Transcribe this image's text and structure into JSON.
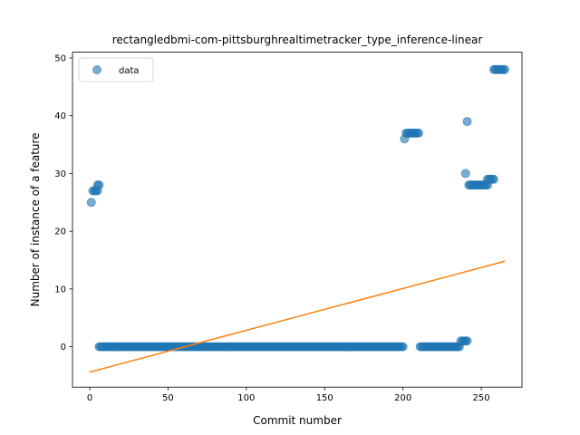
{
  "chart_data": {
    "type": "scatter",
    "title": "rectangledbmi-com-pittsburghrealtimetracker_type_inference-linear",
    "xlabel": "Commit number",
    "ylabel": "Number of instance of a feature",
    "xlim": [
      -11,
      276
    ],
    "ylim": [
      -7,
      51
    ],
    "xticks": [
      0,
      50,
      100,
      150,
      200,
      250
    ],
    "yticks": [
      0,
      10,
      20,
      30,
      40,
      50
    ],
    "grid": false,
    "legend": {
      "position": "top-left",
      "entries": [
        "data"
      ]
    },
    "colors": {
      "data": "#1f77b4",
      "fit": "#ff7f0e"
    },
    "series": [
      {
        "name": "data",
        "kind": "scatter",
        "segments": [
          {
            "x_start": 1,
            "x_end": 1,
            "y": 25
          },
          {
            "x_start": 2,
            "x_end": 3,
            "y": 27
          },
          {
            "x_start": 4,
            "x_end": 5,
            "y": 27
          },
          {
            "x_start": 5,
            "x_end": 6,
            "y": 28
          },
          {
            "x_start": 6,
            "x_end": 200,
            "y": 0
          },
          {
            "x_start": 201,
            "x_end": 201,
            "y": 36
          },
          {
            "x_start": 202,
            "x_end": 210,
            "y": 37
          },
          {
            "x_start": 211,
            "x_end": 236,
            "y": 0
          },
          {
            "x_start": 237,
            "x_end": 241,
            "y": 1
          },
          {
            "x_start": 240,
            "x_end": 240,
            "y": 30
          },
          {
            "x_start": 241,
            "x_end": 241,
            "y": 39
          },
          {
            "x_start": 242,
            "x_end": 254,
            "y": 28
          },
          {
            "x_start": 254,
            "x_end": 258,
            "y": 29
          },
          {
            "x_start": 258,
            "x_end": 265,
            "y": 48
          }
        ]
      },
      {
        "name": "",
        "kind": "line",
        "x": [
          0,
          265
        ],
        "y": [
          -4.4,
          14.8
        ]
      }
    ]
  }
}
